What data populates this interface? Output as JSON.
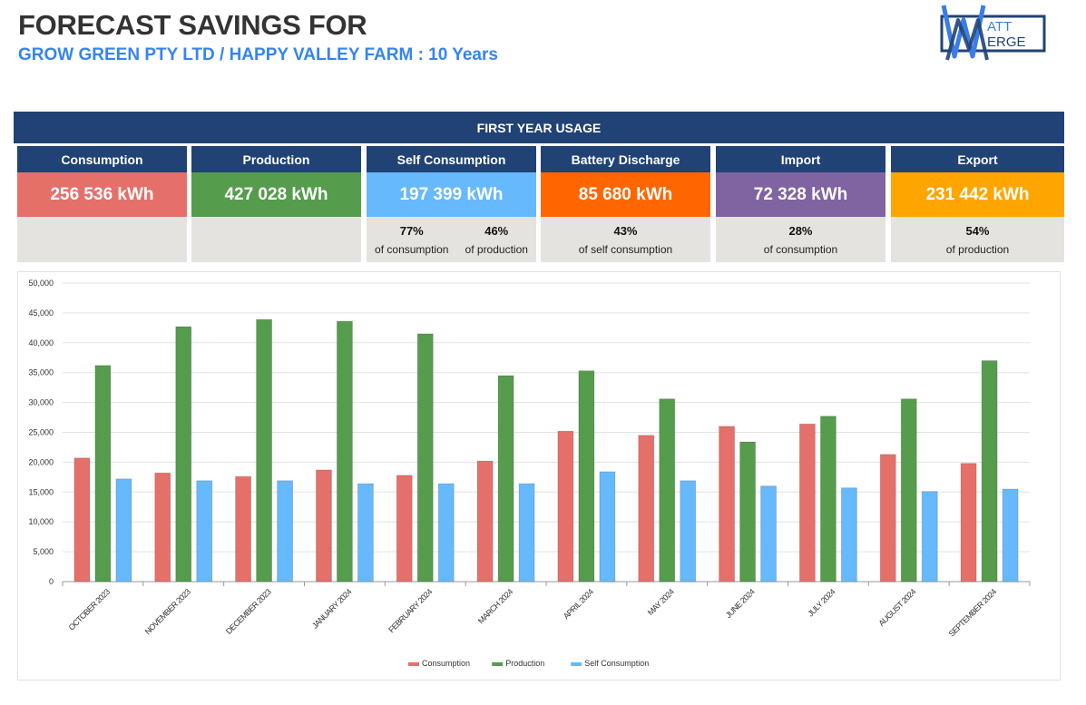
{
  "header": {
    "title": "FORECAST SAVINGS FOR",
    "subtitle": "GROW GREEN PTY LTD / HAPPY VALLEY FARM : 10 Years",
    "logo_top": "ATT",
    "logo_bottom": "ERGE",
    "logo_name": "Watt Merge"
  },
  "banner": {
    "label": "FIRST YEAR USAGE"
  },
  "cards": [
    {
      "label": "Consumption",
      "value": "256 536 kWh",
      "color": "#e5706a",
      "stats": []
    },
    {
      "label": "Production",
      "value": "427 028 kWh",
      "color": "#559c4d",
      "stats": []
    },
    {
      "label": "Self Consumption",
      "value": "197 399 kWh",
      "color": "#66b9fc",
      "stats": [
        {
          "pct": "77%",
          "label": "of consumption"
        },
        {
          "pct": "46%",
          "label": "of production"
        }
      ]
    },
    {
      "label": "Battery Discharge",
      "value": "85 680 kWh",
      "color": "#ff6600",
      "stats": [
        {
          "pct": "43%",
          "label": "of self consumption"
        }
      ]
    },
    {
      "label": "Import",
      "value": "72 328 kWh",
      "color": "#8064a2",
      "stats": [
        {
          "pct": "28%",
          "label": "of consumption"
        }
      ]
    },
    {
      "label": "Export",
      "value": "231 442 kWh",
      "color": "#ffa500",
      "stats": [
        {
          "pct": "54%",
          "label": "of production"
        }
      ]
    }
  ],
  "chart_data": {
    "type": "bar",
    "title": "",
    "xlabel": "",
    "ylabel": "",
    "ylim": [
      0,
      50000
    ],
    "yticks": [
      0,
      5000,
      10000,
      15000,
      20000,
      25000,
      30000,
      35000,
      40000,
      45000,
      50000
    ],
    "ytick_labels": [
      "0",
      "5,000",
      "10,000",
      "15,000",
      "20,000",
      "25,000",
      "30,000",
      "35,000",
      "40,000",
      "45,000",
      "50,000"
    ],
    "grid": true,
    "legend_position": "bottom",
    "categories": [
      "OCTOBER 2023",
      "NOVEMBER 2023",
      "DECEMBER 2023",
      "JANUARY 2024",
      "FEBRUARY 2024",
      "MARCH 2024",
      "APRIL 2024",
      "MAY 2024",
      "JUNE 2024",
      "JULY 2024",
      "AUGUST 2024",
      "SEPTEMBER 2024"
    ],
    "series": [
      {
        "name": "Consumption",
        "color": "#e5706a",
        "values": [
          20700,
          18200,
          17600,
          18700,
          17800,
          20200,
          25200,
          24500,
          26000,
          26400,
          21300,
          19800
        ]
      },
      {
        "name": "Production",
        "color": "#559c4d",
        "values": [
          36200,
          42700,
          43900,
          43600,
          41500,
          34500,
          35300,
          30600,
          23400,
          27700,
          30600,
          37000
        ]
      },
      {
        "name": "Self Consumption",
        "color": "#66b9fc",
        "values": [
          17200,
          16900,
          16900,
          16400,
          16400,
          16400,
          18400,
          16900,
          16000,
          15700,
          15100,
          15500
        ]
      }
    ]
  }
}
